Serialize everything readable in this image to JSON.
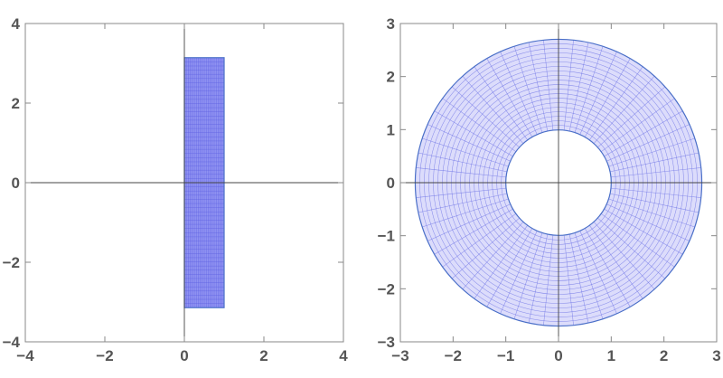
{
  "chart_data": [
    {
      "type": "region",
      "title": "",
      "xlabel": "",
      "ylabel": "",
      "xlim": [
        -4,
        4
      ],
      "ylim": [
        -4,
        4
      ],
      "x_ticks": [
        -4,
        -2,
        0,
        2,
        4
      ],
      "y_ticks": [
        -4,
        -2,
        0,
        2,
        4
      ],
      "x_tick_labels": [
        "−4",
        "−2",
        "0",
        "2",
        "4"
      ],
      "y_tick_labels": [
        "−4",
        "−2",
        "0",
        "2",
        "4"
      ],
      "shape": {
        "kind": "rectangle",
        "x_range": [
          0,
          1
        ],
        "y_range": [
          -3.14159,
          3.14159
        ],
        "mesh_x_divisions": 20,
        "mesh_y_divisions": 60
      },
      "axes_through_origin": true,
      "grid": false,
      "colors": {
        "fill": "#7b7ff0",
        "mesh": "#5a5ee0",
        "edge": "#4a6fc8"
      }
    },
    {
      "type": "region",
      "title": "",
      "xlabel": "",
      "ylabel": "",
      "xlim": [
        -3,
        3
      ],
      "ylim": [
        -3,
        3
      ],
      "x_ticks": [
        -3,
        -2,
        -1,
        0,
        1,
        2,
        3
      ],
      "y_ticks": [
        -3,
        -2,
        -1,
        0,
        1,
        2,
        3
      ],
      "x_tick_labels": [
        "−3",
        "−2",
        "−1",
        "0",
        "1",
        "2",
        "3"
      ],
      "y_tick_labels": [
        "−3",
        "−2",
        "−1",
        "0",
        "1",
        "2",
        "3"
      ],
      "shape": {
        "kind": "annulus",
        "inner_radius": 1,
        "outer_radius": 2.71828,
        "mesh_radial_divisions": 20,
        "mesh_angular_divisions": 60
      },
      "axes_through_origin": true,
      "grid": false,
      "colors": {
        "fill": "#dcdcfb",
        "mesh": "#6f74e6",
        "edge": "#4a6fc8"
      }
    }
  ]
}
